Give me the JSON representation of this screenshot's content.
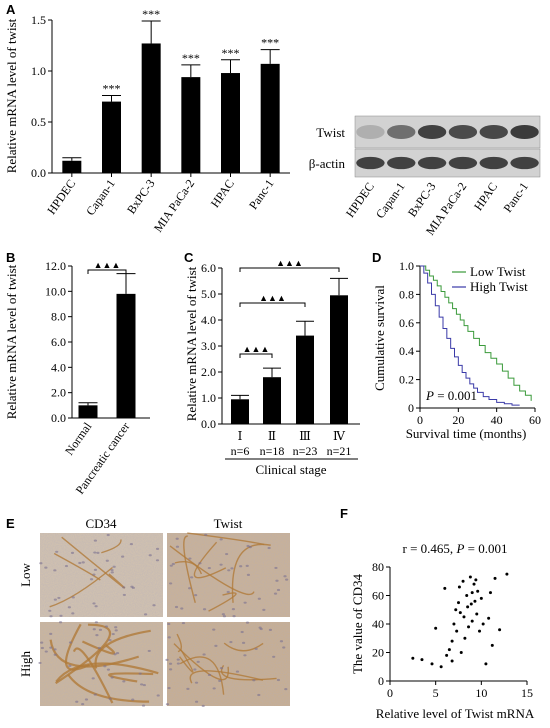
{
  "panels": {
    "A": "A",
    "B": "B",
    "C": "C",
    "D": "D",
    "E": "E",
    "F": "F"
  },
  "western_blot": {
    "rows": [
      "Twist",
      "β-actin"
    ],
    "lanes": [
      "HPDEC",
      "Capan-1",
      "BxPC-3",
      "MIA PaCa-2",
      "HPAC",
      "Panc-1"
    ],
    "twist_intensity": [
      0.3,
      0.62,
      0.85,
      0.8,
      0.82,
      0.88
    ],
    "actin_intensity": [
      0.85,
      0.85,
      0.85,
      0.85,
      0.85,
      0.85
    ]
  },
  "histology": {
    "columns": [
      "CD34",
      "Twist"
    ],
    "rows": [
      "Low",
      "High"
    ],
    "colors": {
      "background": "#d9cbb8",
      "stain": "#b07a3a",
      "nuclei": "#7a7090"
    }
  },
  "chart_data": [
    {
      "id": "A",
      "type": "bar",
      "categories": [
        "HPDEC",
        "Capan-1",
        "BxPC-3",
        "MIA PaCa-2",
        "HPAC",
        "Panc-1"
      ],
      "values": [
        0.12,
        0.7,
        1.27,
        0.94,
        0.98,
        1.07
      ],
      "errors": [
        0.03,
        0.06,
        0.22,
        0.12,
        0.13,
        0.14
      ],
      "annotations": [
        "",
        "***",
        "***",
        "***",
        "***",
        "***"
      ],
      "ylabel": "Relative mRNA level of twist",
      "ylim": [
        0,
        1.5
      ],
      "yticks": [
        "0.0",
        "0.5",
        "1.0",
        "1.5"
      ],
      "ytick_values": [
        0,
        0.5,
        1.0,
        1.5
      ]
    },
    {
      "id": "B",
      "type": "bar",
      "categories": [
        "Normal",
        "Pancreatic cancer"
      ],
      "values": [
        1.0,
        9.8
      ],
      "errors": [
        0.2,
        1.6
      ],
      "ylabel": "Relative mRNA level of twist",
      "ylim": [
        0,
        12
      ],
      "yticks": [
        "0.0",
        "2.0",
        "4.0",
        "6.0",
        "8.0",
        "10.0",
        "12.0"
      ],
      "ytick_values": [
        0,
        2,
        4,
        6,
        8,
        10,
        12
      ],
      "significance": [
        {
          "from": 0,
          "to": 1,
          "label": "▲▲▲"
        }
      ]
    },
    {
      "id": "C",
      "type": "bar",
      "categories": [
        "Ⅰ",
        "Ⅱ",
        "Ⅲ",
        "Ⅳ"
      ],
      "n_labels": [
        "n=6",
        "n=18",
        "n=23",
        "n=21"
      ],
      "values": [
        0.95,
        1.8,
        3.4,
        4.95
      ],
      "errors": [
        0.15,
        0.35,
        0.55,
        0.65
      ],
      "ylabel": "Relative mRNA level of twist",
      "xlabel": "Clinical stage",
      "ylim": [
        0,
        6
      ],
      "yticks": [
        "0.0",
        "1.0",
        "2.0",
        "3.0",
        "4.0",
        "5.0",
        "6.0"
      ],
      "ytick_values": [
        0,
        1,
        2,
        3,
        4,
        5,
        6
      ],
      "significance": [
        {
          "from": 0,
          "to": 1,
          "label": "▲▲▲"
        },
        {
          "from": 0,
          "to": 2,
          "label": "▲▲▲"
        },
        {
          "from": 0,
          "to": 3,
          "label": "▲▲▲"
        }
      ]
    },
    {
      "id": "D",
      "type": "line",
      "ylabel": "Cumulative survival",
      "xlabel": "Survival time (months)",
      "xlim": [
        0,
        60
      ],
      "ylim": [
        0,
        1.0
      ],
      "xticks": [
        "0",
        "20",
        "40",
        "60"
      ],
      "xtick_values": [
        0,
        20,
        40,
        60
      ],
      "yticks": [
        "0",
        "0.2",
        "0.4",
        "0.6",
        "0.8",
        "1.0"
      ],
      "ytick_values": [
        0,
        0.2,
        0.4,
        0.6,
        0.8,
        1.0
      ],
      "annotation_prefix": "P",
      "annotation_value": " = 0.001",
      "legend": "top-right",
      "series": [
        {
          "name": "Low Twist",
          "color": "#3a9a3a",
          "x": [
            0,
            3,
            5,
            7,
            9,
            11,
            13,
            15,
            17,
            19,
            21,
            23,
            25,
            28,
            31,
            34,
            37,
            40,
            43,
            46,
            49,
            52,
            55,
            58
          ],
          "y": [
            1.0,
            0.97,
            0.93,
            0.9,
            0.86,
            0.82,
            0.78,
            0.74,
            0.7,
            0.66,
            0.62,
            0.58,
            0.54,
            0.49,
            0.44,
            0.39,
            0.35,
            0.31,
            0.26,
            0.21,
            0.16,
            0.12,
            0.09,
            0.05
          ]
        },
        {
          "name": "High Twist",
          "color": "#3a3aa8",
          "x": [
            0,
            2,
            4,
            6,
            8,
            10,
            12,
            14,
            16,
            18,
            20,
            22,
            24,
            26,
            28,
            30,
            33,
            36,
            40,
            44,
            48,
            52
          ],
          "y": [
            1.0,
            0.95,
            0.88,
            0.8,
            0.72,
            0.64,
            0.56,
            0.49,
            0.42,
            0.36,
            0.3,
            0.25,
            0.21,
            0.17,
            0.14,
            0.11,
            0.08,
            0.06,
            0.04,
            0.03,
            0.02,
            0.02
          ]
        }
      ]
    },
    {
      "id": "F",
      "type": "scatter",
      "title": "r = 0.465, P = 0.001",
      "title_prefix": "r = 0.465, ",
      "title_p": "P",
      "title_suffix": " = 0.001",
      "ylabel": "The value of CD34",
      "xlabel": "Relative level of Twist mRNA",
      "xlim": [
        0,
        15
      ],
      "ylim": [
        0,
        80
      ],
      "xticks": [
        "0",
        "5",
        "10",
        "15"
      ],
      "xtick_values": [
        0,
        5,
        10,
        15
      ],
      "yticks": [
        "0",
        "20",
        "40",
        "60",
        "80"
      ],
      "ytick_values": [
        0,
        20,
        40,
        60,
        80
      ],
      "x": [
        2.5,
        3.5,
        4.6,
        5.0,
        5.6,
        6.0,
        6.2,
        6.5,
        6.8,
        7.0,
        7.2,
        7.3,
        7.5,
        7.7,
        7.8,
        8.0,
        8.1,
        8.2,
        8.4,
        8.5,
        8.6,
        8.8,
        9.0,
        9.0,
        9.2,
        9.3,
        9.5,
        9.6,
        9.8,
        10.0,
        10.2,
        10.5,
        10.8,
        11.0,
        11.5,
        12.0,
        12.8,
        6.8,
        7.6,
        8.9,
        9.4,
        11.2
      ],
      "y": [
        16,
        15,
        12,
        37,
        10,
        65,
        18,
        22,
        28,
        40,
        50,
        35,
        55,
        48,
        20,
        70,
        45,
        30,
        60,
        52,
        38,
        73,
        62,
        42,
        68,
        56,
        47,
        63,
        35,
        58,
        40,
        12,
        44,
        62,
        72,
        36,
        75,
        14,
        66,
        54,
        71,
        25
      ]
    }
  ]
}
